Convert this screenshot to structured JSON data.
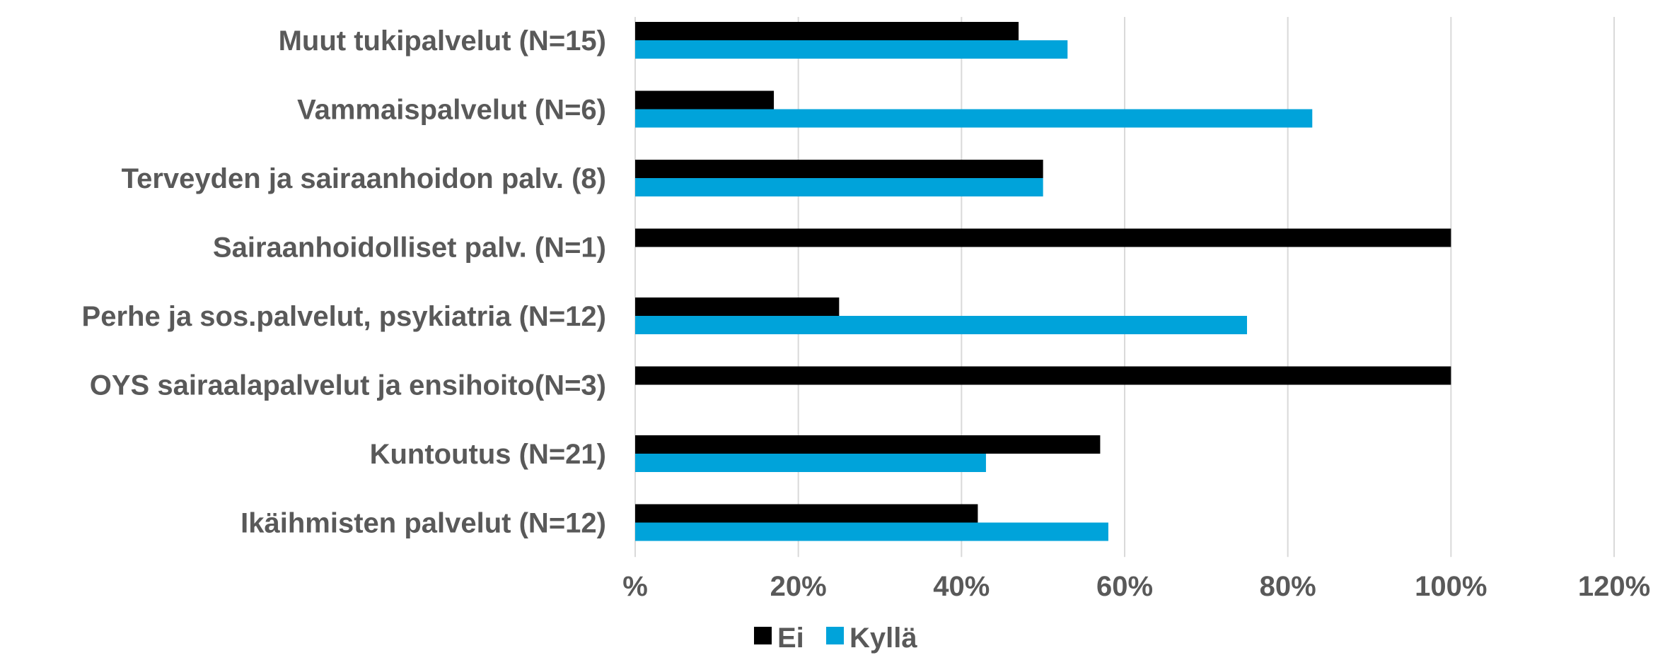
{
  "chart_data": {
    "type": "bar",
    "orientation": "horizontal",
    "title": "",
    "xlabel": "",
    "ylabel": "",
    "categories": [
      "Muut tukipalvelut (N=15)",
      "Vammaispalvelut (N=6)",
      "Terveyden ja sairaanhoidon palv. (8)",
      "Sairaanhoidolliset palv. (N=1)",
      "Perhe ja sos.palvelut, psykiatria (N=12)",
      "OYS sairaalapalvelut ja ensihoito(N=3)",
      "Kuntoutus (N=21)",
      "Ikäihmisten palvelut (N=12)"
    ],
    "series": [
      {
        "name": "Ei",
        "color": "#000000",
        "values": [
          47,
          17,
          50,
          100,
          25,
          100,
          57,
          42
        ]
      },
      {
        "name": "Kyllä",
        "color": "#00A3DA",
        "values": [
          53,
          83,
          50,
          0,
          75,
          0,
          43,
          58
        ]
      }
    ],
    "xlim": [
      0,
      120
    ],
    "x_ticks": [
      0,
      20,
      40,
      60,
      80,
      100,
      120
    ],
    "x_tick_labels": [
      "%",
      "20%",
      "40%",
      "60%",
      "80%",
      "100%",
      "120%"
    ],
    "grid": "vertical",
    "legend_position": "bottom"
  }
}
